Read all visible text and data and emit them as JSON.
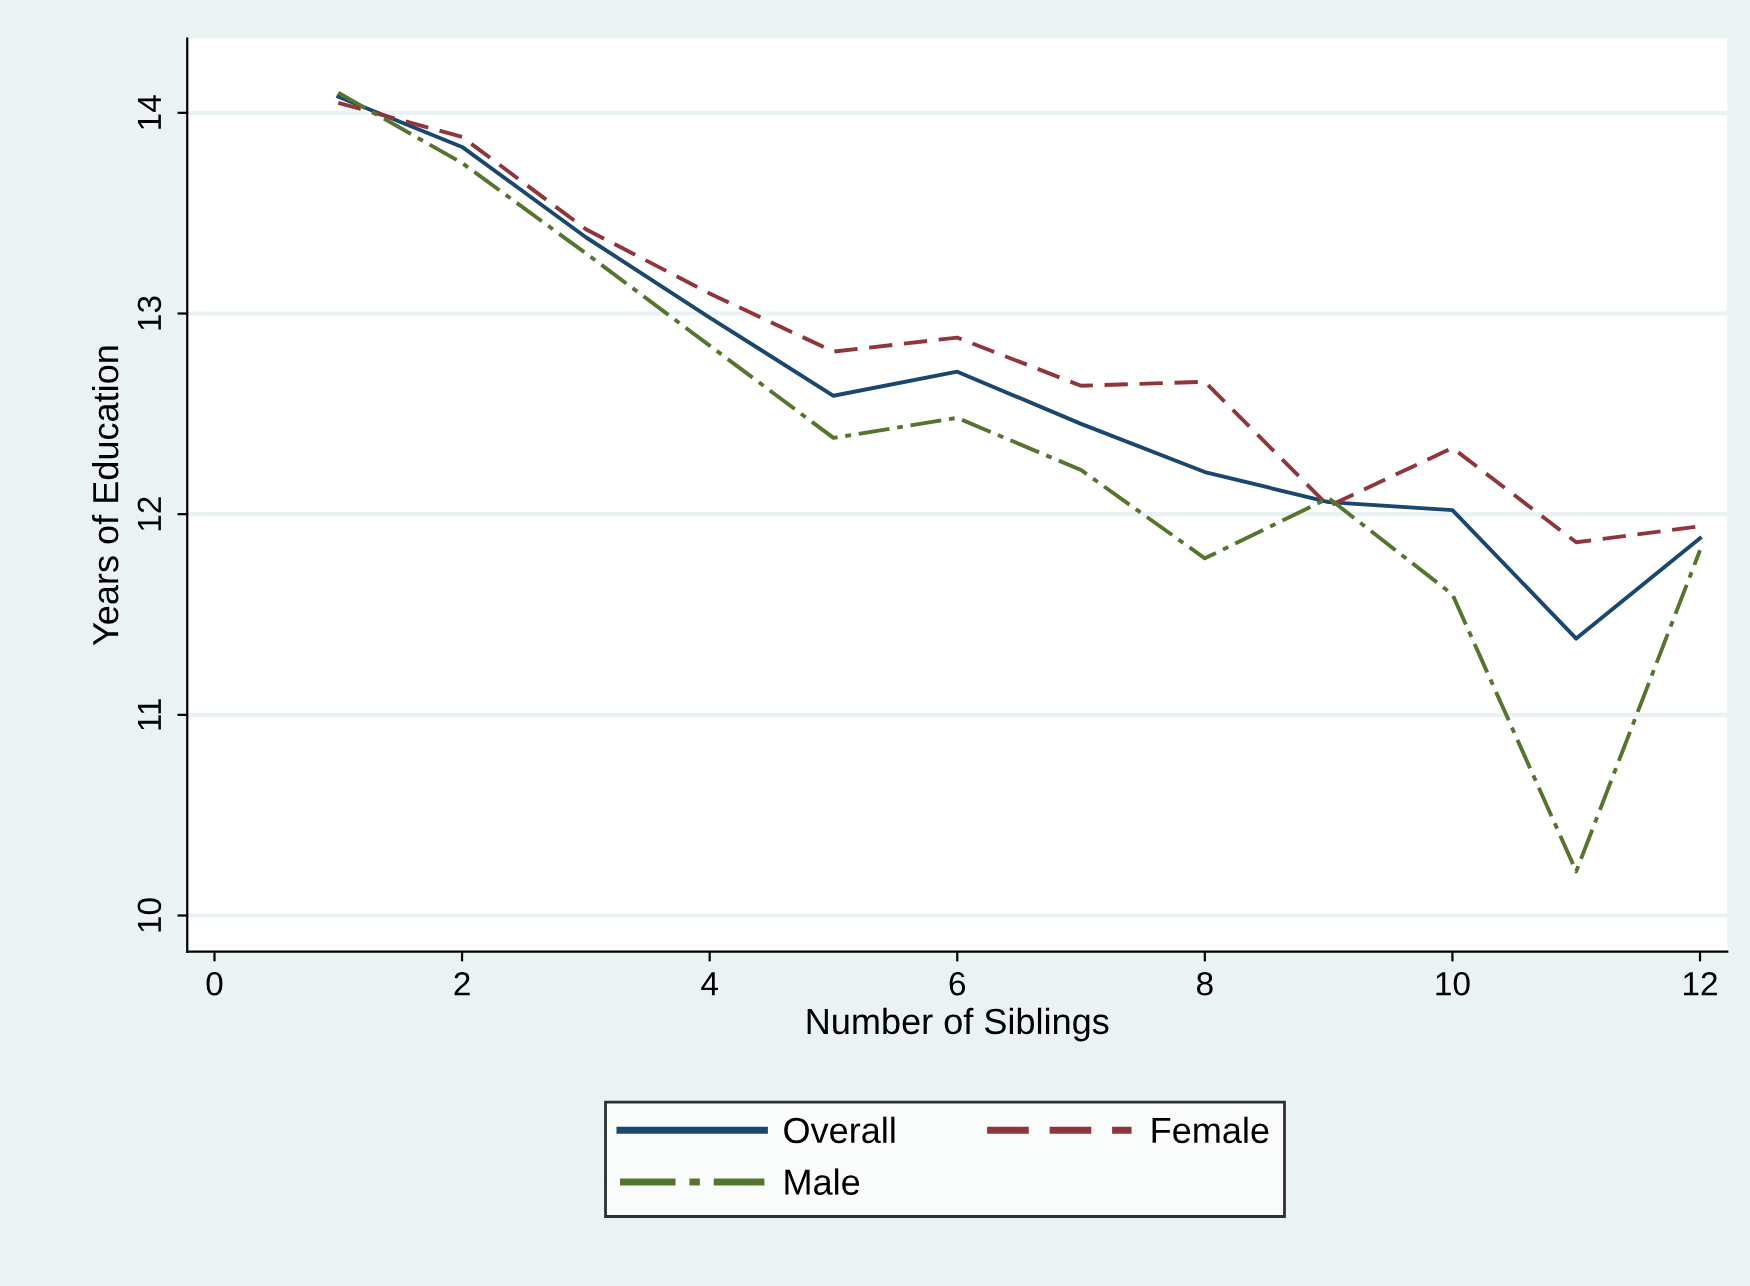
{
  "chart_data": {
    "type": "line",
    "xlabel": "Number of Siblings",
    "ylabel": "Years of Education",
    "x": [
      1,
      2,
      3,
      4,
      5,
      6,
      7,
      8,
      9,
      10,
      11,
      12
    ],
    "series": [
      {
        "name": "Overall",
        "color": "#1a476f",
        "line_style": "solid",
        "values": [
          14.08,
          13.83,
          13.38,
          12.98,
          12.59,
          12.71,
          12.45,
          12.21,
          12.06,
          12.02,
          11.38,
          11.88
        ]
      },
      {
        "name": "Female",
        "color": "#90353b",
        "line_style": "dashed",
        "values": [
          14.05,
          13.88,
          13.42,
          13.1,
          12.81,
          12.88,
          12.64,
          12.66,
          12.04,
          12.33,
          11.86,
          11.94
        ]
      },
      {
        "name": "Male",
        "color": "#55752f",
        "line_style": "dashdot",
        "values": [
          14.1,
          13.75,
          13.3,
          12.84,
          12.38,
          12.48,
          12.22,
          11.78,
          12.08,
          11.6,
          10.22,
          11.82
        ]
      }
    ],
    "xlim": [
      -0.22,
      12.22
    ],
    "xticks": [
      0,
      2,
      4,
      6,
      8,
      10,
      12
    ],
    "ylim": [
      9.82,
      14.37
    ],
    "yticks": [
      10,
      11,
      12,
      13,
      14
    ],
    "grid": "y",
    "legend": "bottom",
    "marker": "none"
  }
}
